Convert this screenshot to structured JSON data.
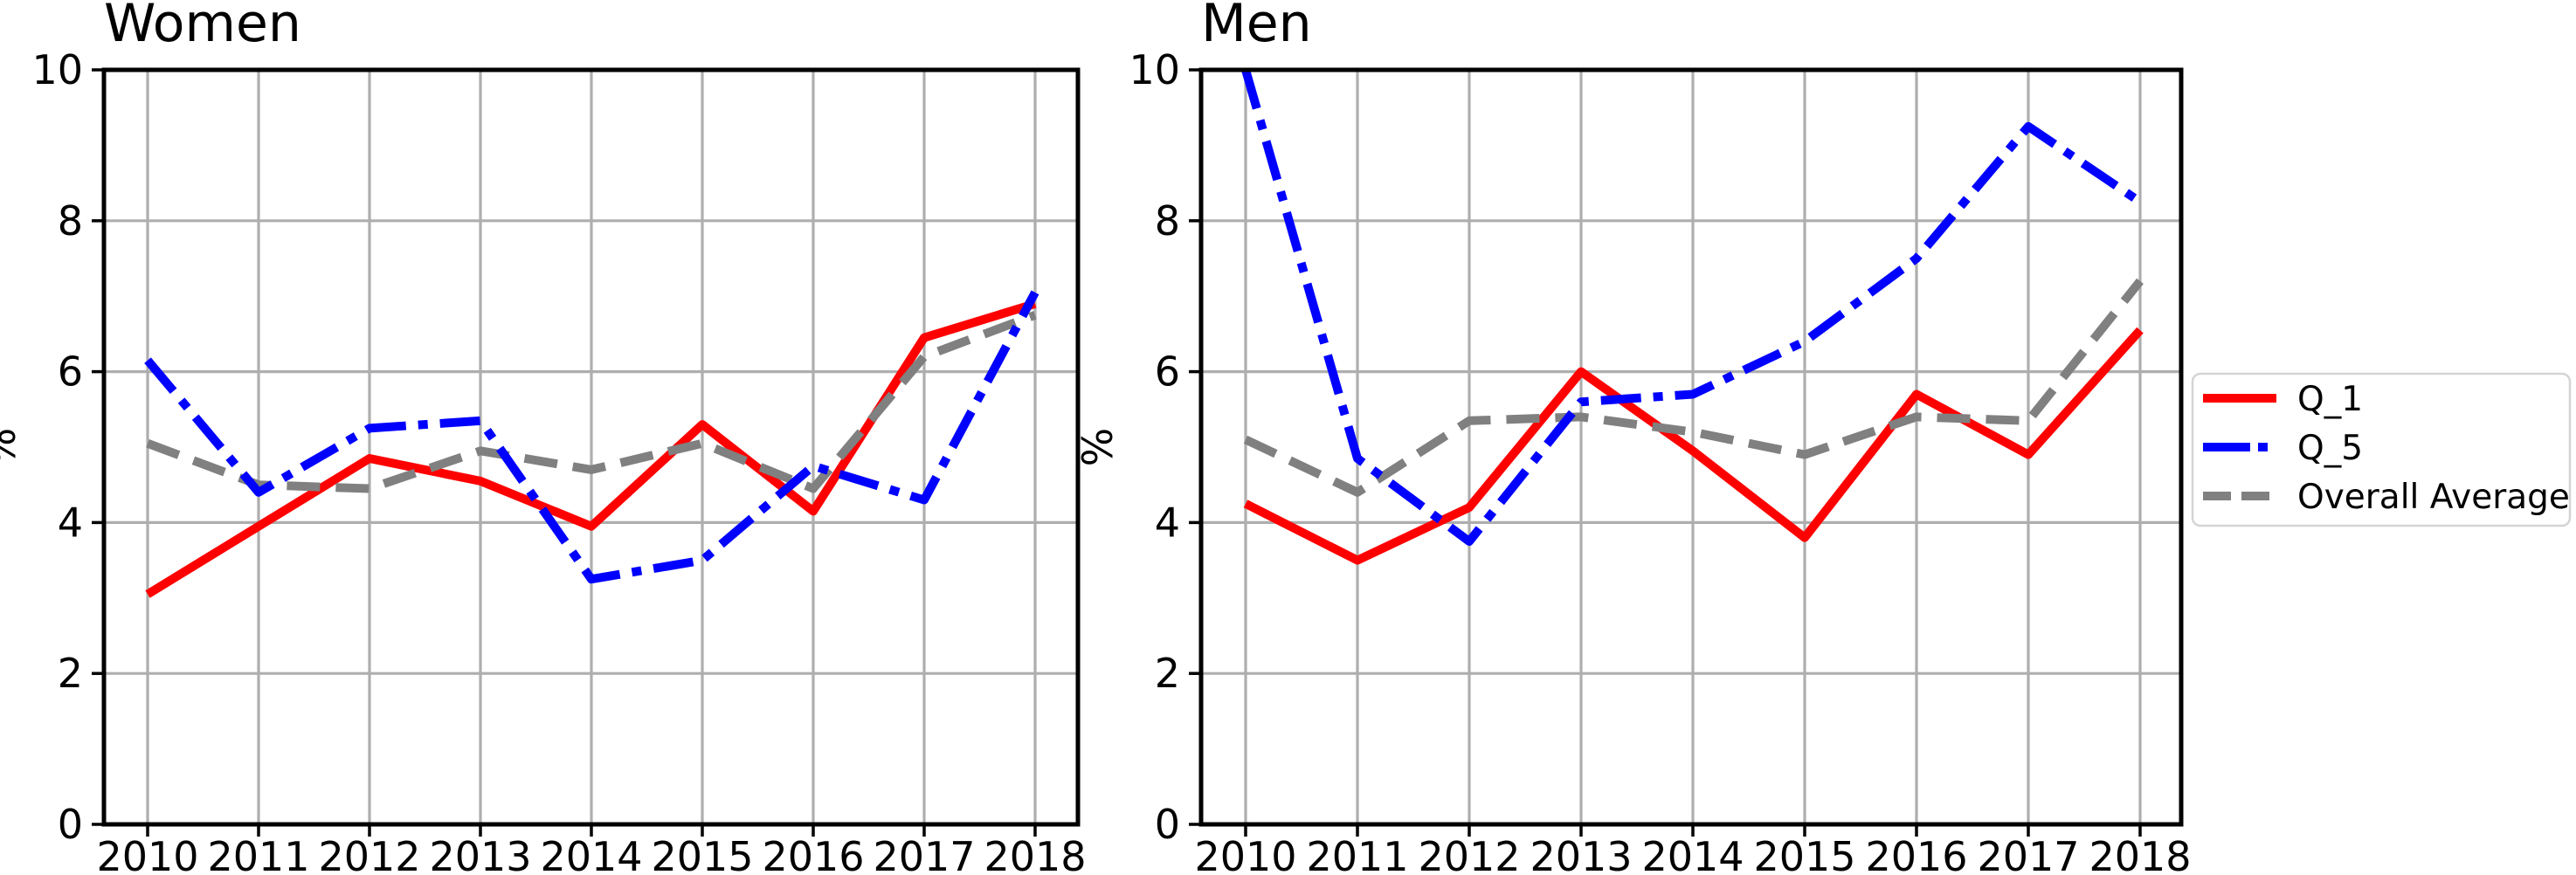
{
  "figure": {
    "background_color": "#ffffff",
    "text_color": "#000000",
    "grid_color": "#aeaeae",
    "spine_color": "#000000",
    "titles": [
      "Women",
      "Men"
    ],
    "ylabel": "%",
    "legend": {
      "position": "right-of-men-plot",
      "border_color": "#d4d4d4",
      "items": [
        {
          "label": "Q_1",
          "color": "#ff0000",
          "style": "solid"
        },
        {
          "label": "Q_5",
          "color": "#0000ff",
          "style": "dashdot"
        },
        {
          "label": "Overall Average",
          "color": "#808080",
          "style": "dashed"
        }
      ]
    }
  },
  "chart_data": [
    {
      "type": "line",
      "title": "Women",
      "xlabel": "",
      "ylabel": "%",
      "x": [
        2010,
        2011,
        2012,
        2013,
        2014,
        2015,
        2016,
        2017,
        2018
      ],
      "yticks": [
        0,
        2,
        4,
        6,
        8,
        10
      ],
      "ylim": [
        0,
        10
      ],
      "grid": true,
      "series": [
        {
          "name": "Q_1",
          "color": "#ff0000",
          "linestyle": "solid",
          "values": [
            3.05,
            3.95,
            4.85,
            4.55,
            3.95,
            5.3,
            4.15,
            6.45,
            6.9
          ]
        },
        {
          "name": "Q_5",
          "color": "#0000ff",
          "linestyle": "dashdot",
          "values": [
            6.15,
            4.4,
            5.25,
            5.35,
            3.25,
            3.5,
            4.75,
            4.3,
            7.05
          ]
        },
        {
          "name": "Overall Average",
          "color": "#808080",
          "linestyle": "dashed",
          "values": [
            5.05,
            4.5,
            4.45,
            4.95,
            4.7,
            5.05,
            4.45,
            6.2,
            6.75
          ]
        }
      ]
    },
    {
      "type": "line",
      "title": "Men",
      "xlabel": "",
      "ylabel": "%",
      "x": [
        2010,
        2011,
        2012,
        2013,
        2014,
        2015,
        2016,
        2017,
        2018
      ],
      "yticks": [
        0,
        2,
        4,
        6,
        8,
        10
      ],
      "ylim": [
        0,
        10
      ],
      "grid": true,
      "series": [
        {
          "name": "Q_1",
          "color": "#ff0000",
          "linestyle": "solid",
          "values": [
            4.25,
            3.5,
            4.2,
            6.0,
            4.95,
            3.8,
            5.7,
            4.9,
            6.55
          ]
        },
        {
          "name": "Q_5",
          "color": "#0000ff",
          "linestyle": "dashdot",
          "values": [
            10.0,
            4.85,
            3.75,
            5.6,
            5.7,
            6.4,
            7.5,
            9.25,
            8.25
          ]
        },
        {
          "name": "Overall Average",
          "color": "#808080",
          "linestyle": "dashed",
          "values": [
            5.1,
            4.4,
            5.35,
            5.4,
            5.2,
            4.9,
            5.4,
            5.35,
            7.2
          ]
        }
      ]
    }
  ]
}
